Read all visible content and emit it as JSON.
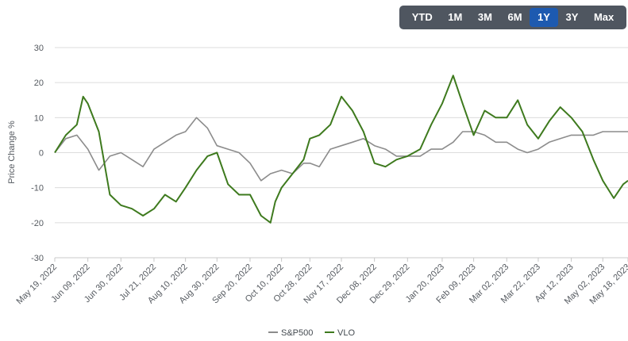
{
  "range_selector": {
    "buttons": [
      "YTD",
      "1M",
      "3M",
      "6M",
      "1Y",
      "3Y",
      "Max"
    ],
    "active": "1Y"
  },
  "colors": {
    "sp500": "#8c8c8c",
    "vlo": "#3e7a1e",
    "grid": "#dcdcdc",
    "range_bar": "#4f5660",
    "range_active": "#1d5ab0"
  },
  "chart_data": {
    "type": "line",
    "ylabel": "Price Change %",
    "xlabel": "",
    "ylim": [
      -30,
      30
    ],
    "y_ticks": [
      30,
      20,
      10,
      0,
      -10,
      -20,
      -30
    ],
    "x_tick_labels": [
      "May 19, 2022",
      "Jun 09, 2022",
      "Jun 30, 2022",
      "Jul 21, 2022",
      "Aug 10, 2022",
      "Aug 30, 2022",
      "Sep 20, 2022",
      "Oct 10, 2022",
      "Oct 28, 2022",
      "Nov 17, 2022",
      "Dec 08, 2022",
      "Dec 29, 2022",
      "Jan 20, 2023",
      "Feb 09, 2023",
      "Mar 02, 2023",
      "Mar 22, 2023",
      "Apr 12, 2023",
      "May 02, 2023",
      "May 18, 2023"
    ],
    "grid": true,
    "legend_position": "bottom-center",
    "series": [
      {
        "name": "S&P500",
        "color": "#8c8c8c",
        "points": [
          [
            "May 19, 2022",
            0
          ],
          [
            "May 26, 2022",
            4
          ],
          [
            "Jun 02, 2022",
            5
          ],
          [
            "Jun 09, 2022",
            1
          ],
          [
            "Jun 16, 2022",
            -5
          ],
          [
            "Jun 23, 2022",
            -1
          ],
          [
            "Jun 30, 2022",
            0
          ],
          [
            "Jul 07, 2022",
            -2
          ],
          [
            "Jul 14, 2022",
            -4
          ],
          [
            "Jul 21, 2022",
            1
          ],
          [
            "Jul 28, 2022",
            3
          ],
          [
            "Aug 04, 2022",
            5
          ],
          [
            "Aug 10, 2022",
            6
          ],
          [
            "Aug 17, 2022",
            10
          ],
          [
            "Aug 24, 2022",
            7
          ],
          [
            "Aug 30, 2022",
            2
          ],
          [
            "Sep 06, 2022",
            1
          ],
          [
            "Sep 13, 2022",
            0
          ],
          [
            "Sep 20, 2022",
            -3
          ],
          [
            "Sep 27, 2022",
            -8
          ],
          [
            "Oct 03, 2022",
            -6
          ],
          [
            "Oct 10, 2022",
            -5
          ],
          [
            "Oct 17, 2022",
            -6
          ],
          [
            "Oct 24, 2022",
            -3
          ],
          [
            "Oct 28, 2022",
            -3
          ],
          [
            "Nov 03, 2022",
            -4
          ],
          [
            "Nov 10, 2022",
            1
          ],
          [
            "Nov 17, 2022",
            2
          ],
          [
            "Nov 24, 2022",
            3
          ],
          [
            "Dec 01, 2022",
            4
          ],
          [
            "Dec 08, 2022",
            2
          ],
          [
            "Dec 15, 2022",
            1
          ],
          [
            "Dec 22, 2022",
            -1
          ],
          [
            "Dec 29, 2022",
            -1
          ],
          [
            "Jan 06, 2023",
            -1
          ],
          [
            "Jan 13, 2023",
            1
          ],
          [
            "Jan 20, 2023",
            1
          ],
          [
            "Jan 27, 2023",
            3
          ],
          [
            "Feb 02, 2023",
            6
          ],
          [
            "Feb 09, 2023",
            6
          ],
          [
            "Feb 16, 2023",
            5
          ],
          [
            "Feb 23, 2023",
            3
          ],
          [
            "Mar 02, 2023",
            3
          ],
          [
            "Mar 09, 2023",
            1
          ],
          [
            "Mar 15, 2023",
            0
          ],
          [
            "Mar 22, 2023",
            1
          ],
          [
            "Mar 29, 2023",
            3
          ],
          [
            "Apr 05, 2023",
            4
          ],
          [
            "Apr 12, 2023",
            5
          ],
          [
            "Apr 19, 2023",
            5
          ],
          [
            "Apr 26, 2023",
            5
          ],
          [
            "May 02, 2023",
            6
          ],
          [
            "May 09, 2023",
            6
          ],
          [
            "May 15, 2023",
            6
          ],
          [
            "May 18, 2023",
            6
          ]
        ]
      },
      {
        "name": "VLO",
        "color": "#3e7a1e",
        "points": [
          [
            "May 19, 2022",
            0
          ],
          [
            "May 26, 2022",
            5
          ],
          [
            "Jun 02, 2022",
            8
          ],
          [
            "Jun 06, 2022",
            16
          ],
          [
            "Jun 09, 2022",
            14
          ],
          [
            "Jun 16, 2022",
            6
          ],
          [
            "Jun 23, 2022",
            -12
          ],
          [
            "Jun 30, 2022",
            -15
          ],
          [
            "Jul 07, 2022",
            -16
          ],
          [
            "Jul 14, 2022",
            -18
          ],
          [
            "Jul 21, 2022",
            -16
          ],
          [
            "Jul 28, 2022",
            -12
          ],
          [
            "Aug 04, 2022",
            -14
          ],
          [
            "Aug 10, 2022",
            -10
          ],
          [
            "Aug 17, 2022",
            -5
          ],
          [
            "Aug 24, 2022",
            -1
          ],
          [
            "Aug 30, 2022",
            0
          ],
          [
            "Sep 06, 2022",
            -9
          ],
          [
            "Sep 13, 2022",
            -12
          ],
          [
            "Sep 20, 2022",
            -12
          ],
          [
            "Sep 27, 2022",
            -18
          ],
          [
            "Oct 03, 2022",
            -20
          ],
          [
            "Oct 06, 2022",
            -14
          ],
          [
            "Oct 10, 2022",
            -10
          ],
          [
            "Oct 17, 2022",
            -6
          ],
          [
            "Oct 24, 2022",
            -2
          ],
          [
            "Oct 28, 2022",
            4
          ],
          [
            "Nov 03, 2022",
            5
          ],
          [
            "Nov 10, 2022",
            8
          ],
          [
            "Nov 17, 2022",
            16
          ],
          [
            "Nov 24, 2022",
            12
          ],
          [
            "Dec 01, 2022",
            6
          ],
          [
            "Dec 08, 2022",
            -3
          ],
          [
            "Dec 15, 2022",
            -4
          ],
          [
            "Dec 22, 2022",
            -2
          ],
          [
            "Dec 29, 2022",
            -1
          ],
          [
            "Jan 06, 2023",
            1
          ],
          [
            "Jan 13, 2023",
            8
          ],
          [
            "Jan 20, 2023",
            14
          ],
          [
            "Jan 27, 2023",
            22
          ],
          [
            "Feb 02, 2023",
            14
          ],
          [
            "Feb 09, 2023",
            5
          ],
          [
            "Feb 16, 2023",
            12
          ],
          [
            "Feb 23, 2023",
            10
          ],
          [
            "Mar 02, 2023",
            10
          ],
          [
            "Mar 09, 2023",
            15
          ],
          [
            "Mar 15, 2023",
            8
          ],
          [
            "Mar 22, 2023",
            4
          ],
          [
            "Mar 29, 2023",
            9
          ],
          [
            "Apr 05, 2023",
            13
          ],
          [
            "Apr 12, 2023",
            10
          ],
          [
            "Apr 19, 2023",
            6
          ],
          [
            "Apr 26, 2023",
            -2
          ],
          [
            "May 02, 2023",
            -8
          ],
          [
            "May 09, 2023",
            -13
          ],
          [
            "May 15, 2023",
            -9
          ],
          [
            "May 18, 2023",
            -8
          ]
        ]
      }
    ]
  }
}
